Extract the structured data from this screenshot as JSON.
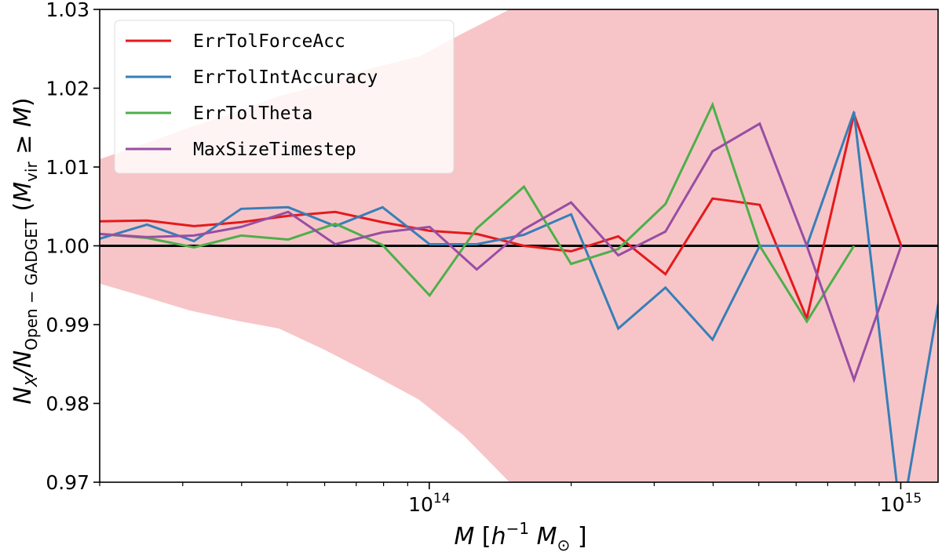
{
  "chart_data": {
    "type": "line",
    "xscale": "log",
    "xlim": [
      20000000000000,
      1200000000000000
    ],
    "ylim": [
      0.97,
      1.03
    ],
    "yticks": [
      "1.03",
      "1.02",
      "1.01",
      "1.00",
      "0.99",
      "0.98",
      "0.97"
    ],
    "xtick_labels": [
      {
        "value": 100000000000000,
        "base": "10",
        "exp": "14"
      },
      {
        "value": 1000000000000000,
        "base": "10",
        "exp": "15"
      }
    ],
    "xlabel": {
      "pre": "M",
      "unit_open": " [",
      "h": "h",
      "hexp": "−1",
      "m": " M",
      "msub": "⊙",
      "unit_close": " ]"
    },
    "ylabel": {
      "n": "N",
      "xsub": "X",
      "slash": "/N",
      "sub": "Open − GADGET",
      "paren_open": " (",
      "m": "M",
      "vir": "vir",
      "ge": " ≥ ",
      "m2": "M",
      "paren_close": ")"
    },
    "reference_line": 1.0,
    "legend_position": "upper left",
    "band": {
      "color": "#f7c5c8",
      "x": [
        20000000000000,
        25000000000000,
        31000000000000,
        39000000000000,
        48000000000000,
        60000000000000,
        75000000000000,
        95000000000000,
        118000000000000,
        148000000000000,
        300000000000000,
        1200000000000000
      ],
      "upper": [
        1.011,
        1.013,
        1.015,
        1.017,
        1.019,
        1.0205,
        1.0225,
        1.024,
        1.027,
        1.03,
        1.03,
        1.03
      ],
      "lower": [
        0.9952,
        0.9935,
        0.9918,
        0.9905,
        0.9895,
        0.9868,
        0.9838,
        0.9805,
        0.976,
        0.97,
        0.97,
        0.97
      ]
    },
    "x": [
      20000000000000,
      25200000000000,
      31700000000000,
      39900000000000,
      50200000000000,
      63200000000000,
      79600000000000,
      100200000000000,
      126100000000000,
      158800000000000,
      199900000000000,
      251700000000000,
      316900000000000,
      398900000000000,
      502200000000000,
      632200000000000,
      795900000000000,
      1002000000000000,
      1261000000000000
    ],
    "series": [
      {
        "name": "ErrTolForceAcc",
        "color": "#e41a1c",
        "values": [
          1.0031,
          1.0032,
          1.0025,
          1.003,
          1.0038,
          1.0043,
          1.003,
          1.0019,
          1.0015,
          1.0,
          0.9993,
          1.0012,
          0.9964,
          1.006,
          1.0052,
          0.9908,
          1.0167,
          1.0,
          null
        ]
      },
      {
        "name": "ErrTolIntAccuracy",
        "color": "#377eb8",
        "values": [
          1.0009,
          1.0027,
          1.0006,
          1.0047,
          1.0049,
          1.0025,
          1.0049,
          1.0002,
          1.0002,
          1.0014,
          1.004,
          0.9895,
          0.9947,
          0.9881,
          1.0,
          1.0,
          1.017,
          0.965,
          1.0
        ]
      },
      {
        "name": "ErrTolTheta",
        "color": "#4daf4a",
        "values": [
          1.0015,
          1.001,
          0.9998,
          1.0013,
          1.0008,
          1.0028,
          1.0001,
          0.9937,
          1.0022,
          1.0075,
          0.9977,
          0.9996,
          1.0053,
          1.0179,
          1.0,
          0.9904,
          1.0,
          null,
          null
        ]
      },
      {
        "name": "MaxSizeTimestep",
        "color": "#984ea3",
        "values": [
          1.0015,
          1.0011,
          1.0013,
          1.0024,
          1.0043,
          1.0002,
          1.0017,
          1.0024,
          0.997,
          1.0021,
          1.0055,
          0.9988,
          1.0018,
          1.012,
          1.0155,
          1.0,
          0.983,
          1.0,
          null
        ]
      }
    ]
  }
}
